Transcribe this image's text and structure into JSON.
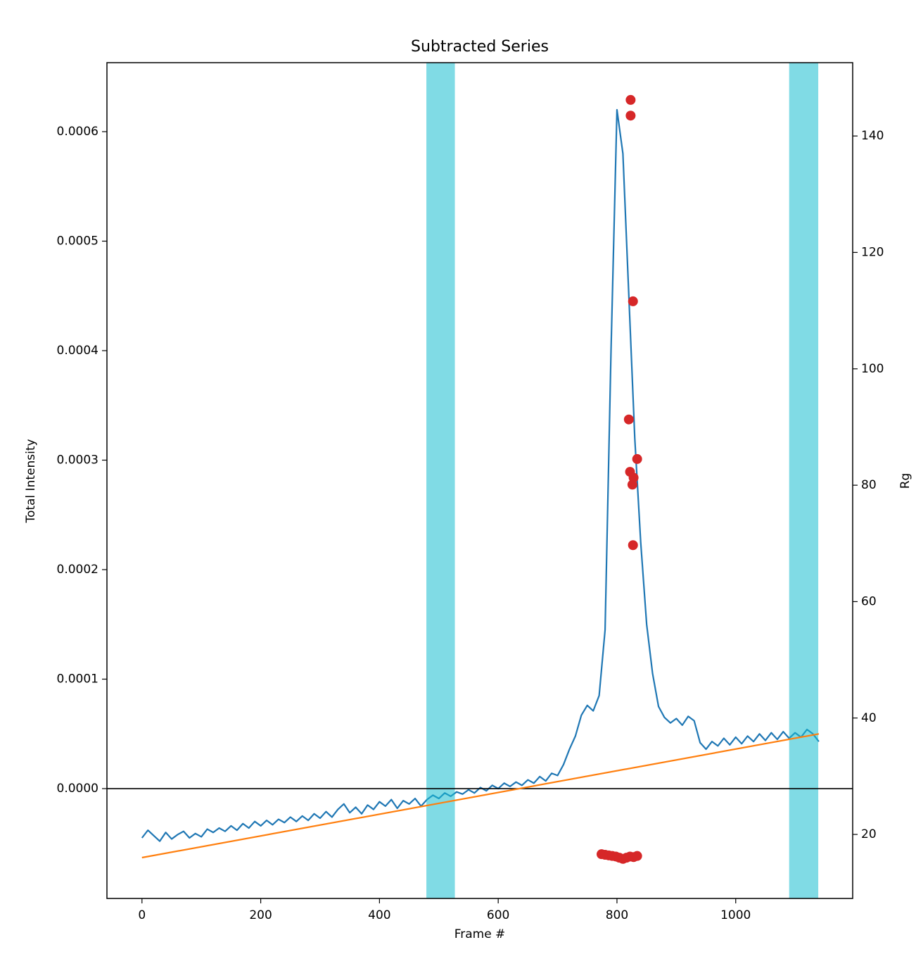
{
  "chart_data": {
    "type": "line",
    "title": "Subtracted Series",
    "x_label": "Frame #",
    "y_label": "Total Intensity",
    "y2_label": "Rg",
    "xlim": [
      -59,
      1197
    ],
    "ylim": [
      -0.0001003,
      0.000663
    ],
    "y2lim": [
      9.0,
      152.6
    ],
    "xticks": [
      0,
      200,
      400,
      600,
      800,
      1000
    ],
    "yticks": [
      {
        "value": 0,
        "label": "0.0000"
      },
      {
        "value": 0.0001,
        "label": "0.0001"
      },
      {
        "value": 0.0002,
        "label": "0.0002"
      },
      {
        "value": 0.0003,
        "label": "0.0003"
      },
      {
        "value": 0.0004,
        "label": "0.0004"
      },
      {
        "value": 0.0005,
        "label": "0.0005"
      },
      {
        "value": 0.0006,
        "label": "0.0006"
      }
    ],
    "y2ticks": [
      20,
      40,
      60,
      80,
      100,
      120,
      140
    ],
    "grid": false,
    "hline": 0,
    "hline_color": "#000000",
    "spans": [
      {
        "x": [
          479,
          527
        ],
        "color": "#17becf",
        "alpha": 0.55
      },
      {
        "x": [
          1090,
          1139
        ],
        "color": "#17becf",
        "alpha": 0.55
      }
    ],
    "series": [
      {
        "type": "line",
        "color": "#1f77b4",
        "x": [
          0,
          10,
          20,
          30,
          40,
          50,
          60,
          70,
          80,
          90,
          100,
          110,
          120,
          130,
          140,
          150,
          160,
          170,
          180,
          190,
          200,
          210,
          220,
          230,
          240,
          250,
          260,
          270,
          280,
          290,
          300,
          310,
          320,
          330,
          340,
          350,
          360,
          370,
          380,
          390,
          400,
          410,
          420,
          430,
          440,
          450,
          460,
          470,
          480,
          490,
          500,
          510,
          520,
          530,
          540,
          550,
          560,
          570,
          580,
          590,
          600,
          610,
          620,
          630,
          640,
          650,
          660,
          670,
          680,
          690,
          700,
          710,
          720,
          730,
          740,
          750,
          760,
          770,
          780,
          790,
          800,
          810,
          820,
          830,
          840,
          850,
          860,
          870,
          880,
          890,
          900,
          910,
          920,
          930,
          940,
          950,
          960,
          970,
          980,
          990,
          1000,
          1010,
          1020,
          1030,
          1040,
          1050,
          1060,
          1070,
          1080,
          1090,
          1100,
          1110,
          1120,
          1130,
          1140
        ],
        "values": [
          -4.5e-05,
          -3.8e-05,
          -4.3e-05,
          -4.8e-05,
          -4e-05,
          -4.6e-05,
          -4.2e-05,
          -3.9e-05,
          -4.5e-05,
          -4.1e-05,
          -4.4e-05,
          -3.7e-05,
          -4e-05,
          -3.6e-05,
          -3.9e-05,
          -3.4e-05,
          -3.8e-05,
          -3.2e-05,
          -3.6e-05,
          -3e-05,
          -3.4e-05,
          -2.9e-05,
          -3.3e-05,
          -2.8e-05,
          -3.1e-05,
          -2.6e-05,
          -3e-05,
          -2.5e-05,
          -2.9e-05,
          -2.3e-05,
          -2.7e-05,
          -2.1e-05,
          -2.6e-05,
          -1.9e-05,
          -1.4e-05,
          -2.2e-05,
          -1.7e-05,
          -2.3e-05,
          -1.5e-05,
          -1.9e-05,
          -1.2e-05,
          -1.6e-05,
          -1e-05,
          -1.8e-05,
          -1.1e-05,
          -1.4e-05,
          -9e-06,
          -1.6e-05,
          -1e-05,
          -6e-06,
          -9e-06,
          -4e-06,
          -7e-06,
          -3e-06,
          -5e-06,
          -1e-06,
          -4e-06,
          1e-06,
          -2e-06,
          3e-06,
          0.0,
          5e-06,
          2e-06,
          6e-06,
          3e-06,
          8e-06,
          5e-06,
          1.1e-05,
          7e-06,
          1.4e-05,
          1.2e-05,
          2.2e-05,
          3.6e-05,
          4.8e-05,
          6.7e-05,
          7.6e-05,
          7.1e-05,
          8.5e-05,
          0.000145,
          0.0004,
          0.00062,
          0.00058,
          0.00045,
          0.00032,
          0.000225,
          0.00015,
          0.000105,
          7.5e-05,
          6.5e-05,
          6e-05,
          6.4e-05,
          5.8e-05,
          6.6e-05,
          6.2e-05,
          4.2e-05,
          3.6e-05,
          4.3e-05,
          3.9e-05,
          4.6e-05,
          4e-05,
          4.7e-05,
          4.1e-05,
          4.8e-05,
          4.3e-05,
          5e-05,
          4.4e-05,
          5.1e-05,
          4.5e-05,
          5.2e-05,
          4.6e-05,
          5.1e-05,
          4.7e-05,
          5.4e-05,
          5e-05,
          4.3e-05
        ]
      },
      {
        "type": "line",
        "color": "#ff7f0e",
        "x": [
          0,
          1140
        ],
        "values": [
          -6.3e-05,
          5e-05
        ]
      },
      {
        "type": "scatter",
        "color": "#d62728",
        "axis": "y2",
        "x": [
          823,
          823,
          827,
          820,
          834,
          822,
          828,
          826,
          827,
          774,
          780,
          786,
          792,
          798,
          804,
          810,
          816,
          822,
          828,
          834
        ],
        "values": [
          146.2,
          143.5,
          111.6,
          91.3,
          84.5,
          82.3,
          81.3,
          80.1,
          69.7,
          16.6,
          16.5,
          16.4,
          16.3,
          16.2,
          16.0,
          15.8,
          16.0,
          16.2,
          16.1,
          16.3
        ]
      }
    ]
  }
}
